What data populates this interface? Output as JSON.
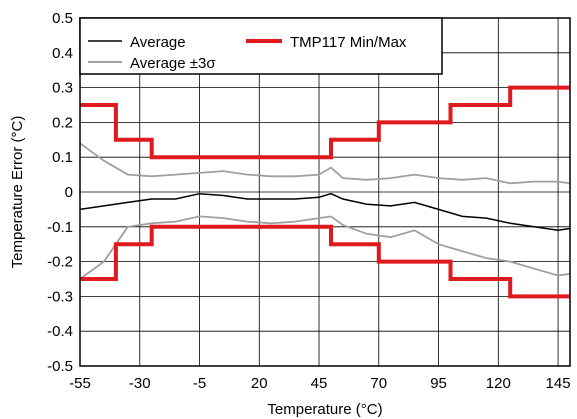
{
  "chart_data": {
    "type": "line",
    "title": "",
    "xlabel": "Temperature (°C)",
    "ylabel": "Temperature Error (°C)",
    "xlim": [
      -55,
      150
    ],
    "ylim": [
      -0.5,
      0.5
    ],
    "xticks": [
      -55,
      -30,
      -5,
      20,
      45,
      70,
      95,
      120,
      145
    ],
    "xtick_labels": [
      "-55",
      "-30",
      "-5",
      "20",
      "45",
      "70",
      "95",
      "120",
      "145"
    ],
    "yticks": [
      -0.5,
      -0.4,
      -0.3,
      -0.2,
      -0.1,
      0,
      0.1,
      0.2,
      0.3,
      0.4,
      0.5
    ],
    "ytick_labels": [
      "-0.5",
      "-0.4",
      "-0.3",
      "-0.2",
      "-0.1",
      "0",
      "0.1",
      "0.2",
      "0.3",
      "0.4",
      "0.5"
    ],
    "grid": true,
    "legend_position": "top",
    "series": [
      {
        "name": "Average",
        "color": "#000000",
        "style": "line",
        "x": [
          -55,
          -45,
          -35,
          -25,
          -15,
          -5,
          5,
          15,
          25,
          35,
          45,
          50,
          55,
          65,
          75,
          85,
          95,
          105,
          115,
          125,
          135,
          145,
          150
        ],
        "y": [
          -0.05,
          -0.04,
          -0.03,
          -0.02,
          -0.02,
          -0.005,
          -0.01,
          -0.02,
          -0.02,
          -0.02,
          -0.015,
          -0.005,
          -0.02,
          -0.035,
          -0.04,
          -0.03,
          -0.05,
          -0.07,
          -0.075,
          -0.09,
          -0.1,
          -0.11,
          -0.105
        ]
      },
      {
        "name": "Average ±3σ",
        "color": "#a0a0a0",
        "style": "line",
        "x": [
          -55,
          -45,
          -35,
          -25,
          -15,
          -5,
          5,
          15,
          25,
          35,
          45,
          50,
          55,
          65,
          75,
          85,
          95,
          105,
          115,
          125,
          135,
          145,
          150
        ],
        "y": [
          0.14,
          0.09,
          0.05,
          0.045,
          0.05,
          0.055,
          0.06,
          0.05,
          0.045,
          0.045,
          0.05,
          0.07,
          0.04,
          0.035,
          0.04,
          0.05,
          0.04,
          0.035,
          0.04,
          0.025,
          0.03,
          0.03,
          0.025
        ]
      },
      {
        "name": "Average ±3σ lower",
        "color": "#a0a0a0",
        "style": "line",
        "x": [
          -55,
          -45,
          -35,
          -25,
          -15,
          -5,
          5,
          15,
          25,
          35,
          45,
          50,
          55,
          65,
          75,
          85,
          95,
          105,
          115,
          125,
          135,
          145,
          150
        ],
        "y": [
          -0.25,
          -0.2,
          -0.1,
          -0.09,
          -0.085,
          -0.07,
          -0.075,
          -0.085,
          -0.09,
          -0.085,
          -0.075,
          -0.07,
          -0.095,
          -0.12,
          -0.13,
          -0.11,
          -0.15,
          -0.17,
          -0.19,
          -0.2,
          -0.22,
          -0.24,
          -0.235
        ]
      },
      {
        "name": "TMP117 Min/Max",
        "color": "#e0191e",
        "style": "step",
        "x": [
          -55,
          -40,
          -40,
          -25,
          -25,
          50,
          50,
          70,
          70,
          100,
          100,
          125,
          125,
          150
        ],
        "y": [
          0.25,
          0.25,
          0.15,
          0.15,
          0.1,
          0.1,
          0.15,
          0.15,
          0.2,
          0.2,
          0.25,
          0.25,
          0.3,
          0.3
        ]
      },
      {
        "name": "TMP117 Min/Max lower",
        "color": "#e0191e",
        "style": "step",
        "x": [
          -55,
          -40,
          -40,
          -25,
          -25,
          50,
          50,
          70,
          70,
          100,
          100,
          125,
          125,
          150
        ],
        "y": [
          -0.25,
          -0.25,
          -0.15,
          -0.15,
          -0.1,
          -0.1,
          -0.15,
          -0.15,
          -0.2,
          -0.2,
          -0.25,
          -0.25,
          -0.3,
          -0.3
        ]
      }
    ],
    "legend": [
      {
        "label": "Average",
        "color": "#000000",
        "series": "Average"
      },
      {
        "label": "Average ±3σ",
        "color": "#a0a0a0",
        "series": "Average ±3σ"
      },
      {
        "label": "TMP117 Min/Max",
        "color": "#e0191e",
        "series": "TMP117 Min/Max"
      }
    ]
  }
}
